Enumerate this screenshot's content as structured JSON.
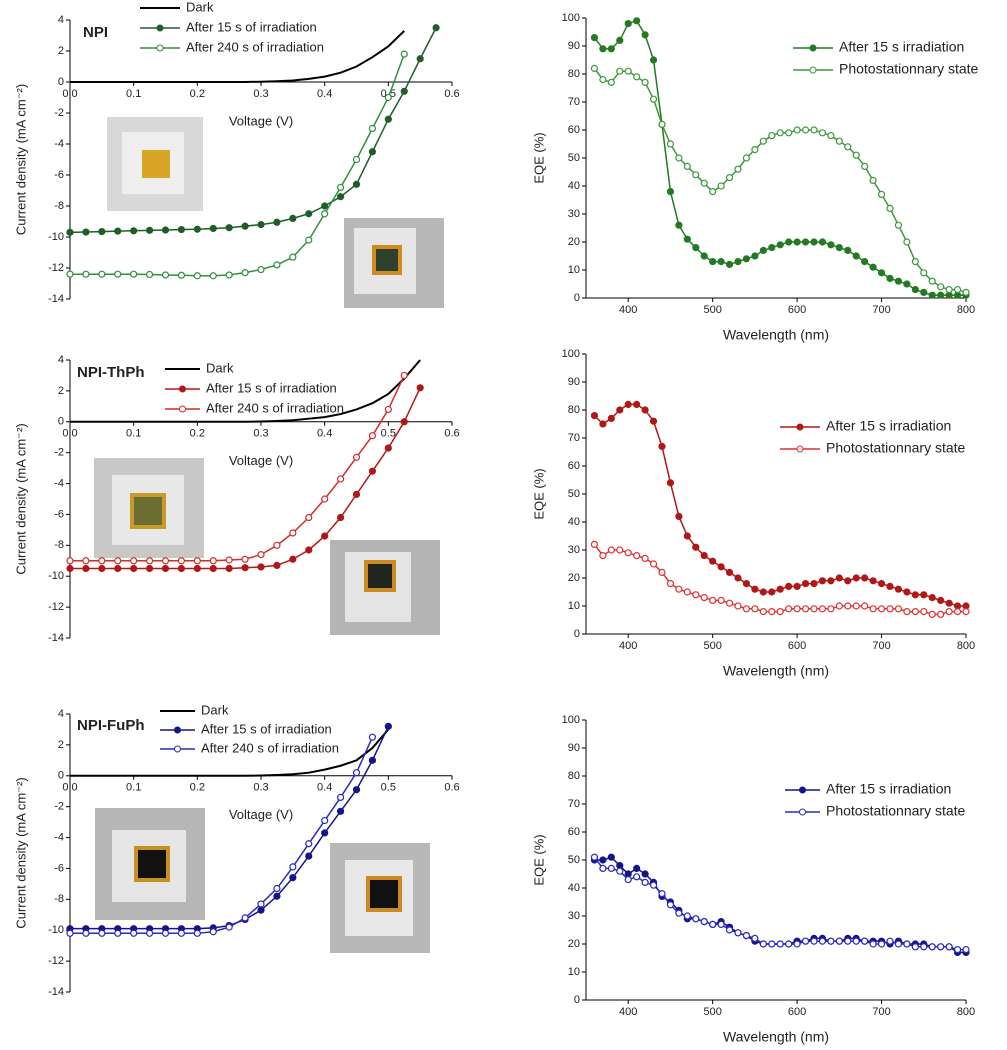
{
  "chart_data": [
    {
      "type": "line",
      "label": "NPI",
      "xlabel": "Voltage (V)",
      "ylabel": "Current density (mA cm⁻²)",
      "x": [
        0,
        0.025,
        0.05,
        0.075,
        0.1,
        0.125,
        0.15,
        0.175,
        0.2,
        0.225,
        0.25,
        0.275,
        0.3,
        0.325,
        0.35,
        0.375,
        0.4,
        0.425,
        0.45,
        0.475,
        0.5,
        0.525,
        0.55,
        0.575,
        0.6
      ],
      "xlim": [
        0,
        0.6
      ],
      "xticks": [
        {
          "value": 0,
          "label": "0.0"
        },
        0.1,
        0.2,
        0.3,
        0.4,
        0.5,
        0.6
      ],
      "ylim": [
        -14,
        4
      ],
      "yticks": [
        -14,
        -12,
        -10,
        -8,
        -6,
        -4,
        -2,
        0,
        2,
        4
      ],
      "series": [
        {
          "name": "Dark",
          "color": "#000000",
          "marker": "none",
          "values": [
            0,
            0,
            0,
            0,
            0,
            0,
            0,
            0,
            0,
            0,
            0,
            0,
            0.02,
            0.05,
            0.1,
            0.2,
            0.35,
            0.6,
            1.0,
            1.6,
            2.3,
            3.3,
            null,
            null,
            null
          ]
        },
        {
          "name": "After 15 s of irradiation",
          "color": "#1f5f26",
          "marker": "filled",
          "values": [
            -9.7,
            -9.68,
            -9.65,
            -9.62,
            -9.6,
            -9.57,
            -9.55,
            -9.52,
            -9.5,
            -9.45,
            -9.4,
            -9.3,
            -9.2,
            -9.05,
            -8.8,
            -8.5,
            -8.0,
            -7.4,
            -6.6,
            -4.5,
            -2.4,
            -0.6,
            1.5,
            3.5,
            null
          ]
        },
        {
          "name": "After 240 s of irradiation",
          "color": "#2f8f3a",
          "marker": "open",
          "values": [
            -12.4,
            -12.4,
            -12.4,
            -12.4,
            -12.4,
            -12.42,
            -12.45,
            -12.47,
            -12.5,
            -12.5,
            -12.45,
            -12.3,
            -12.1,
            -11.8,
            -11.3,
            -10.2,
            -8.5,
            -6.8,
            -5.0,
            -3.0,
            -1.0,
            1.8,
            null,
            null,
            null
          ]
        }
      ]
    },
    {
      "type": "line",
      "xlabel": "Wavelength (nm)",
      "ylabel": "EQE (%)",
      "x": [
        360,
        370,
        380,
        390,
        400,
        410,
        420,
        430,
        440,
        450,
        460,
        470,
        480,
        490,
        500,
        510,
        520,
        530,
        540,
        550,
        560,
        570,
        580,
        590,
        600,
        610,
        620,
        630,
        640,
        650,
        660,
        670,
        680,
        690,
        700,
        710,
        720,
        730,
        740,
        750,
        760,
        770,
        780,
        790,
        800
      ],
      "xlim": [
        350,
        800
      ],
      "xticks": [
        400,
        500,
        600,
        700,
        800
      ],
      "ylim": [
        0,
        100
      ],
      "yticks": [
        0,
        10,
        20,
        30,
        40,
        50,
        60,
        70,
        80,
        90,
        100
      ],
      "series": [
        {
          "name": "After 15 s irradiation",
          "color": "#237a23",
          "marker": "filled",
          "values": [
            93,
            89,
            89,
            92,
            98,
            99,
            94,
            85,
            62,
            38,
            26,
            21,
            18,
            15,
            13,
            13,
            12,
            13,
            14,
            15,
            17,
            18,
            19,
            20,
            20,
            20,
            20,
            20,
            19,
            18,
            17,
            15,
            13,
            11,
            9,
            7,
            6,
            5,
            3,
            2,
            1,
            1,
            1,
            1,
            1
          ]
        },
        {
          "name": "Photostationnary state",
          "color": "#3a9a3a",
          "marker": "open",
          "values": [
            82,
            78,
            77,
            81,
            81,
            79,
            77,
            71,
            62,
            55,
            50,
            47,
            44,
            41,
            38,
            40,
            43,
            46,
            50,
            53,
            56,
            58,
            59,
            59,
            60,
            60,
            60,
            59,
            58,
            56,
            54,
            51,
            47,
            42,
            37,
            32,
            26,
            20,
            13,
            9,
            6,
            4,
            3,
            3,
            2
          ]
        }
      ]
    },
    {
      "type": "line",
      "label": "NPI-ThPh",
      "xlabel": "Voltage (V)",
      "ylabel": "Current density (mA cm⁻²)",
      "x": [
        0,
        0.025,
        0.05,
        0.075,
        0.1,
        0.125,
        0.15,
        0.175,
        0.2,
        0.225,
        0.25,
        0.275,
        0.3,
        0.325,
        0.35,
        0.375,
        0.4,
        0.425,
        0.45,
        0.475,
        0.5,
        0.525,
        0.55,
        0.575,
        0.6
      ],
      "xlim": [
        0,
        0.6
      ],
      "xticks": [
        {
          "value": 0,
          "label": "0.0"
        },
        0.1,
        0.2,
        0.3,
        0.4,
        0.5,
        0.6
      ],
      "ylim": [
        -14,
        4
      ],
      "yticks": [
        -14,
        -12,
        -10,
        -8,
        -6,
        -4,
        -2,
        0,
        2,
        4
      ],
      "series": [
        {
          "name": "Dark",
          "color": "#000000",
          "marker": "none",
          "values": [
            0,
            0,
            0,
            0,
            0,
            0,
            0,
            0,
            0,
            0,
            0,
            0,
            0.02,
            0.05,
            0.1,
            0.2,
            0.3,
            0.5,
            0.8,
            1.2,
            1.8,
            2.8,
            4.0,
            null,
            null
          ]
        },
        {
          "name": "After 15 s of irradiation",
          "color": "#b01818",
          "marker": "filled",
          "values": [
            -9.5,
            -9.5,
            -9.5,
            -9.5,
            -9.5,
            -9.5,
            -9.5,
            -9.5,
            -9.5,
            -9.5,
            -9.5,
            -9.45,
            -9.4,
            -9.3,
            -8.9,
            -8.3,
            -7.4,
            -6.2,
            -4.7,
            -3.2,
            -1.7,
            0.0,
            2.2,
            null,
            null
          ]
        },
        {
          "name": "After 240 s of irradiation",
          "color": "#d42a2a",
          "marker": "open",
          "values": [
            -9.0,
            -9.0,
            -9.0,
            -9.0,
            -9.0,
            -9.0,
            -9.0,
            -9.0,
            -9.0,
            -9.0,
            -8.95,
            -8.9,
            -8.6,
            -8.0,
            -7.2,
            -6.2,
            -5.0,
            -3.7,
            -2.3,
            -0.9,
            0.8,
            3.0,
            null,
            null,
            null
          ]
        }
      ]
    },
    {
      "type": "line",
      "xlabel": "Wavelength (nm)",
      "ylabel": "EQE (%)",
      "x": [
        360,
        370,
        380,
        390,
        400,
        410,
        420,
        430,
        440,
        450,
        460,
        470,
        480,
        490,
        500,
        510,
        520,
        530,
        540,
        550,
        560,
        570,
        580,
        590,
        600,
        610,
        620,
        630,
        640,
        650,
        660,
        670,
        680,
        690,
        700,
        710,
        720,
        730,
        740,
        750,
        760,
        770,
        780,
        790,
        800
      ],
      "xlim": [
        350,
        800
      ],
      "xticks": [
        400,
        500,
        600,
        700,
        800
      ],
      "ylim": [
        0,
        100
      ],
      "yticks": [
        0,
        10,
        20,
        30,
        40,
        50,
        60,
        70,
        80,
        90,
        100
      ],
      "series": [
        {
          "name": "After 15 s irradiation",
          "color": "#b01818",
          "marker": "filled",
          "values": [
            78,
            75,
            77,
            80,
            82,
            82,
            80,
            76,
            67,
            54,
            42,
            35,
            31,
            28,
            26,
            24,
            22,
            20,
            18,
            16,
            15,
            15,
            16,
            17,
            17,
            18,
            18,
            19,
            19,
            20,
            19,
            20,
            20,
            19,
            18,
            17,
            16,
            15,
            14,
            14,
            13,
            12,
            11,
            10,
            10
          ]
        },
        {
          "name": "Photostationnary state",
          "color": "#e03030",
          "marker": "open",
          "values": [
            32,
            28,
            30,
            30,
            29,
            28,
            27,
            25,
            22,
            18,
            16,
            15,
            14,
            13,
            12,
            12,
            11,
            10,
            9,
            9,
            8,
            8,
            8,
            9,
            9,
            9,
            9,
            9,
            9,
            10,
            10,
            10,
            10,
            9,
            9,
            9,
            9,
            8,
            8,
            8,
            7,
            7,
            8,
            8,
            8
          ]
        }
      ]
    },
    {
      "type": "line",
      "label": "NPI-FuPh",
      "xlabel": "Voltage (V)",
      "ylabel": "Current density (mA cm⁻²)",
      "x": [
        0,
        0.025,
        0.05,
        0.075,
        0.1,
        0.125,
        0.15,
        0.175,
        0.2,
        0.225,
        0.25,
        0.275,
        0.3,
        0.325,
        0.35,
        0.375,
        0.4,
        0.425,
        0.45,
        0.475,
        0.5,
        0.525,
        0.55,
        0.575,
        0.6
      ],
      "xlim": [
        0,
        0.6
      ],
      "xticks": [
        {
          "value": 0,
          "label": "0.0"
        },
        0.1,
        0.2,
        0.3,
        0.4,
        0.5,
        0.6
      ],
      "ylim": [
        -14,
        4
      ],
      "yticks": [
        -14,
        -12,
        -10,
        -8,
        -6,
        -4,
        -2,
        0,
        2,
        4
      ],
      "series": [
        {
          "name": "Dark",
          "color": "#000000",
          "marker": "none",
          "values": [
            0,
            0,
            0,
            0,
            0,
            0,
            0,
            0,
            0,
            0,
            0,
            0,
            0.02,
            0.05,
            0.1,
            0.2,
            0.4,
            0.65,
            1.0,
            1.8,
            3.0,
            null,
            null,
            null,
            null
          ]
        },
        {
          "name": "After 15 s of irradiation",
          "color": "#14148c",
          "marker": "filled",
          "values": [
            -9.9,
            -9.9,
            -9.9,
            -9.9,
            -9.9,
            -9.9,
            -9.9,
            -9.9,
            -9.9,
            -9.85,
            -9.7,
            -9.3,
            -8.7,
            -7.8,
            -6.6,
            -5.2,
            -3.7,
            -2.3,
            -0.9,
            1.0,
            3.2,
            null,
            null,
            null,
            null
          ]
        },
        {
          "name": "After 240 s of irradiation",
          "color": "#2a2ac0",
          "marker": "open",
          "values": [
            -10.2,
            -10.2,
            -10.2,
            -10.2,
            -10.2,
            -10.2,
            -10.2,
            -10.2,
            -10.2,
            -10.1,
            -9.8,
            -9.2,
            -8.3,
            -7.3,
            -5.9,
            -4.4,
            -2.9,
            -1.4,
            0.2,
            2.5,
            null,
            null,
            null,
            null,
            null
          ]
        }
      ]
    },
    {
      "type": "line",
      "xlabel": "Wavelength (nm)",
      "ylabel": "EQE (%)",
      "x": [
        360,
        370,
        380,
        390,
        400,
        410,
        420,
        430,
        440,
        450,
        460,
        470,
        480,
        490,
        500,
        510,
        520,
        530,
        540,
        550,
        560,
        570,
        580,
        590,
        600,
        610,
        620,
        630,
        640,
        650,
        660,
        670,
        680,
        690,
        700,
        710,
        720,
        730,
        740,
        750,
        760,
        770,
        780,
        790,
        800
      ],
      "xlim": [
        350,
        800
      ],
      "xticks": [
        400,
        500,
        600,
        700,
        800
      ],
      "ylim": [
        0,
        100
      ],
      "yticks": [
        0,
        10,
        20,
        30,
        40,
        50,
        60,
        70,
        80,
        90,
        100
      ],
      "series": [
        {
          "name": "After 15 s irradiation",
          "color": "#14148c",
          "marker": "filled",
          "values": [
            50,
            50,
            51,
            48,
            45,
            47,
            45,
            42,
            37,
            35,
            32,
            29,
            29,
            28,
            27,
            28,
            26,
            24,
            23,
            21,
            20,
            20,
            20,
            20,
            21,
            21,
            22,
            22,
            21,
            21,
            22,
            22,
            21,
            21,
            21,
            20,
            21,
            20,
            20,
            20,
            19,
            19,
            19,
            17,
            17
          ]
        },
        {
          "name": "Photostationnary state",
          "color": "#2a2ac0",
          "marker": "open",
          "values": [
            51,
            47,
            47,
            46,
            43,
            44,
            42,
            41,
            38,
            34,
            31,
            30,
            29,
            28,
            27,
            27,
            25,
            24,
            23,
            22,
            20,
            20,
            20,
            20,
            20,
            21,
            21,
            21,
            21,
            21,
            21,
            21,
            21,
            20,
            20,
            21,
            20,
            20,
            19,
            19,
            19,
            19,
            19,
            18,
            18
          ]
        }
      ]
    }
  ]
}
